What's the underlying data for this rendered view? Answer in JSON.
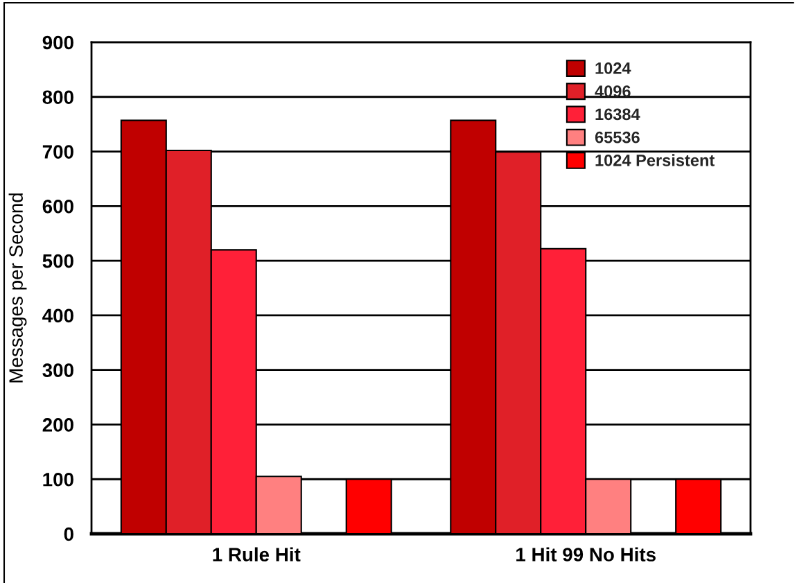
{
  "chart_data": {
    "type": "bar",
    "ylabel": "Messages per Second",
    "categories": [
      "1 Rule Hit",
      "1 Hit 99 No Hits"
    ],
    "series": [
      {
        "name": "1024",
        "color": "#c00000",
        "values": [
          757,
          757
        ]
      },
      {
        "name": "4096",
        "color": "#e02028",
        "values": [
          702,
          699
        ]
      },
      {
        "name": "16384",
        "color": "#ff2038",
        "values": [
          520,
          522
        ]
      },
      {
        "name": "65536",
        "color": "#ff8080",
        "values": [
          105,
          100
        ]
      },
      {
        "values": [
          null,
          null
        ]
      },
      {
        "name": "1024 Persistent",
        "color": "#ff0000",
        "values": [
          100,
          100
        ]
      }
    ],
    "ylim": [
      0,
      900
    ],
    "yticks": [
      0,
      100,
      200,
      300,
      400,
      500,
      600,
      700,
      800,
      900
    ],
    "grid": "y",
    "legend": "top right"
  }
}
